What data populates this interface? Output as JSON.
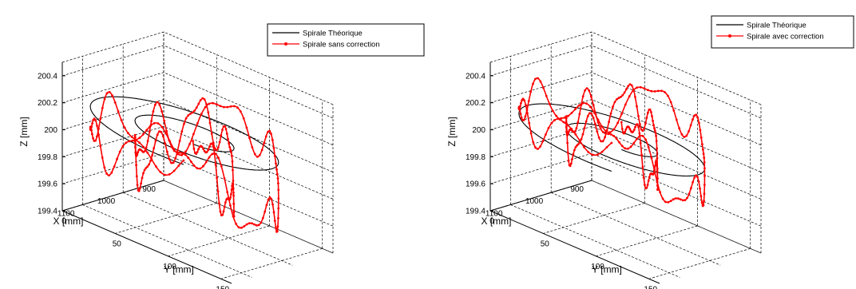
{
  "chart_data": [
    {
      "type": "line",
      "projection": "3d",
      "xlabel": "X [mm]",
      "ylabel": "Y [mm]",
      "zlabel": "Z [mm]",
      "xlim": [
        900,
        1150
      ],
      "ylim": [
        0,
        160
      ],
      "zlim": [
        199.4,
        200.5
      ],
      "x_ticks": [
        "900",
        "1000",
        "1100"
      ],
      "y_ticks": [
        "0",
        "50",
        "100",
        "150"
      ],
      "z_ticks": [
        "199.4",
        "199.6",
        "199.8",
        "200",
        "200.2",
        "200.4"
      ],
      "grid": true,
      "legend_position": "top-right",
      "series": [
        {
          "name": "Spirale Théorique",
          "color": "#000000",
          "marker": "none",
          "spiral": {
            "center_x": 1030,
            "center_y": 80,
            "z": 200.1,
            "r_start": 25,
            "r_end": 112,
            "turns": 2.0
          }
        },
        {
          "name": "Spirale sans correction",
          "color": "#ff0000",
          "marker": "dot",
          "spiral": {
            "center_x": 1030,
            "center_y": 80,
            "z_center": 200.0,
            "r_start": 25,
            "r_end": 112,
            "turns": 2.0
          },
          "z_deviation_range": [
            -0.5,
            0.4
          ]
        }
      ]
    },
    {
      "type": "line",
      "projection": "3d",
      "xlabel": "X [mm]",
      "ylabel": "Y [mm]",
      "zlabel": "Z [mm]",
      "xlim": [
        900,
        1150
      ],
      "ylim": [
        0,
        160
      ],
      "zlim": [
        199.4,
        200.5
      ],
      "x_ticks": [
        "900",
        "1000",
        "1100"
      ],
      "y_ticks": [
        "0",
        "50",
        "100",
        "150"
      ],
      "z_ticks": [
        "199.4",
        "199.6",
        "199.8",
        "200",
        "200.2",
        "200.4"
      ],
      "grid": true,
      "legend_position": "top-right",
      "series": [
        {
          "name": "Spirale Théorique",
          "color": "#000000",
          "marker": "none",
          "spiral": {
            "center_x": 1030,
            "center_y": 80,
            "z": 200.05,
            "r_start": 20,
            "r_end": 112,
            "turns": 2.0
          }
        },
        {
          "name": "Spirale avec correction",
          "color": "#ff0000",
          "marker": "dot",
          "spiral": {
            "center_x": 1030,
            "center_y": 80,
            "z_center": 200.05,
            "r_start": 20,
            "r_end": 112,
            "turns": 2.0
          },
          "z_deviation_range": [
            -0.35,
            0.45
          ]
        }
      ]
    }
  ]
}
